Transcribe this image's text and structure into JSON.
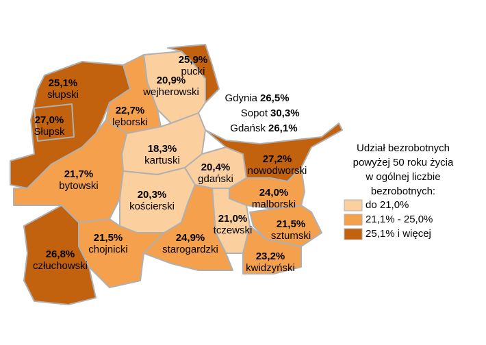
{
  "regions": [
    {
      "name": "pucki",
      "value": 25.9,
      "value_label": "25,9%",
      "color": "#c2620e"
    },
    {
      "name": "wejherowski",
      "value": 20.9,
      "value_label": "20,9%",
      "color": "#fbcf9e"
    },
    {
      "name": "słupski",
      "value": 25.1,
      "value_label": "25,1%",
      "color": "#c2620e"
    },
    {
      "name": "Słupsk",
      "value": 27.0,
      "value_label": "27,0%",
      "color": "#c2620e"
    },
    {
      "name": "lęborski",
      "value": 22.7,
      "value_label": "22,7%",
      "color": "#f5a04c"
    },
    {
      "name": "kartuski",
      "value": 18.3,
      "value_label": "18,3%",
      "color": "#fbcf9e"
    },
    {
      "name": "bytowski",
      "value": 21.7,
      "value_label": "21,7%",
      "color": "#f5a04c"
    },
    {
      "name": "gdański",
      "value": 20.4,
      "value_label": "20,4%",
      "color": "#fbcf9e"
    },
    {
      "name": "nowodworski",
      "value": 27.2,
      "value_label": "27,2%",
      "color": "#c2620e"
    },
    {
      "name": "kościerski",
      "value": 20.3,
      "value_label": "20,3%",
      "color": "#fbcf9e"
    },
    {
      "name": "malborski",
      "value": 24.0,
      "value_label": "24,0%",
      "color": "#f5a04c"
    },
    {
      "name": "tczewski",
      "value": 21.0,
      "value_label": "21,0%",
      "color": "#fbcf9e"
    },
    {
      "name": "sztumski",
      "value": 21.5,
      "value_label": "21,5%",
      "color": "#f5a04c"
    },
    {
      "name": "chojnicki",
      "value": 21.5,
      "value_label": "21,5%",
      "color": "#f5a04c"
    },
    {
      "name": "starogardzki",
      "value": 24.9,
      "value_label": "24,9%",
      "color": "#f5a04c"
    },
    {
      "name": "kwidzyński",
      "value": 23.2,
      "value_label": "23,2%",
      "color": "#f5a04c"
    },
    {
      "name": "człuchowski",
      "value": 26.8,
      "value_label": "26,8%",
      "color": "#c2620e"
    }
  ],
  "cities": [
    {
      "name": "Gdynia",
      "value": 26.5,
      "value_label": "26,5%"
    },
    {
      "name": "Sopot",
      "value": 30.3,
      "value_label": "30,3%"
    },
    {
      "name": "Gdańsk",
      "value": 26.1,
      "value_label": "26,1%"
    }
  ],
  "legend": {
    "title_lines": [
      "Udział bezrobotnych",
      "powyżej 50 roku życia",
      "w ogólnej liczbie",
      "bezrobotnych:"
    ],
    "items": [
      {
        "label": "do 21,0%",
        "color": "#fbcf9e"
      },
      {
        "label": "21,1% - 25,0%",
        "color": "#f5a04c"
      },
      {
        "label": "25,1% i więcej",
        "color": "#c2620e"
      }
    ]
  }
}
